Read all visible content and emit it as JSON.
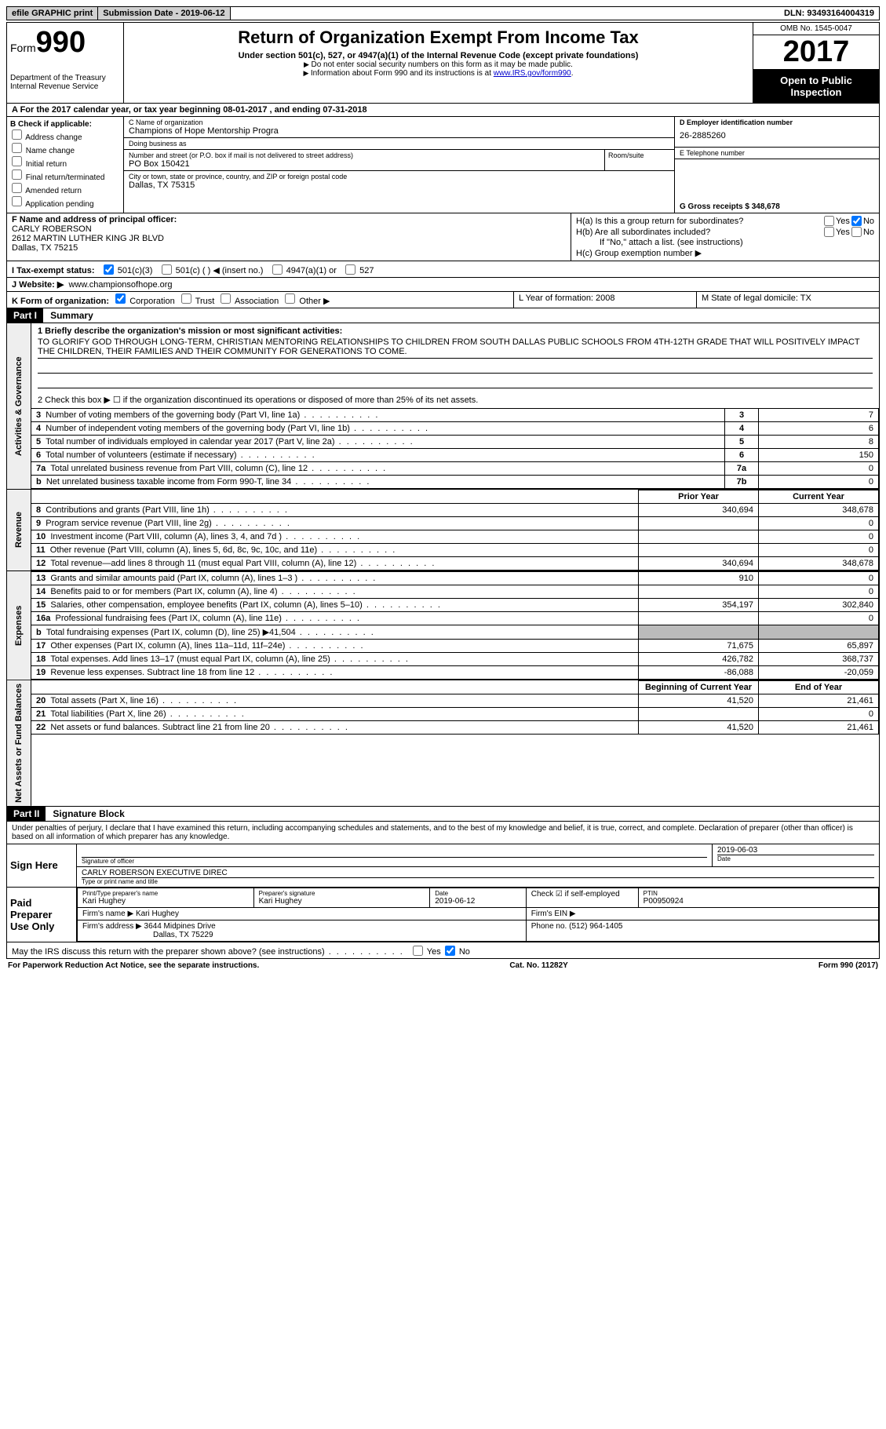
{
  "topbar": {
    "efile": "efile GRAPHIC print",
    "submission": "Submission Date - 2019-06-12",
    "dln": "DLN: 93493164004319"
  },
  "header": {
    "form_label": "Form",
    "form_no": "990",
    "dept": "Department of the Treasury",
    "irs": "Internal Revenue Service",
    "title": "Return of Organization Exempt From Income Tax",
    "subtitle": "Under section 501(c), 527, or 4947(a)(1) of the Internal Revenue Code (except private foundations)",
    "note1": "Do not enter social security numbers on this form as it may be made public.",
    "note2_pre": "Information about Form 990 and its instructions is at ",
    "note2_link": "www.IRS.gov/form990",
    "omb": "OMB No. 1545-0047",
    "year": "2017",
    "open": "Open to Public Inspection"
  },
  "row_a": "A  For the 2017 calendar year, or tax year beginning 08-01-2017   , and ending 07-31-2018",
  "col_b": {
    "title": "B Check if applicable:",
    "opts": [
      "Address change",
      "Name change",
      "Initial return",
      "Final return/terminated",
      "Amended return",
      "Application pending"
    ]
  },
  "org": {
    "c_label": "C Name of organization",
    "name": "Champions of Hope Mentorship Progra",
    "dba_label": "Doing business as",
    "dba": "",
    "addr_label": "Number and street (or P.O. box if mail is not delivered to street address)",
    "room_label": "Room/suite",
    "addr": "PO Box 150421",
    "city_label": "City or town, state or province, country, and ZIP or foreign postal code",
    "city": "Dallas, TX  75315"
  },
  "col_d": {
    "d_label": "D Employer identification number",
    "ein": "26-2885260",
    "e_label": "E Telephone number",
    "phone": "",
    "g_label": "G Gross receipts $ 348,678"
  },
  "f": {
    "label": "F  Name and address of principal officer:",
    "name": "CARLY ROBERSON",
    "addr1": "2612 MARTIN LUTHER KING JR BLVD",
    "addr2": "Dallas, TX  75215"
  },
  "h": {
    "a": "H(a)  Is this a group return for subordinates?",
    "b": "H(b)  Are all subordinates included?",
    "b_note": "If \"No,\" attach a list. (see instructions)",
    "c": "H(c)  Group exemption number ▶"
  },
  "i": {
    "label": "I  Tax-exempt status:",
    "o1": "501(c)(3)",
    "o2": "501(c) (   ) ◀ (insert no.)",
    "o3": "4947(a)(1) or",
    "o4": "527"
  },
  "j": {
    "label": "J  Website: ▶",
    "val": "www.championsofhope.org"
  },
  "k": {
    "label": "K Form of organization:",
    "corp": "Corporation",
    "trust": "Trust",
    "assoc": "Association",
    "other": "Other ▶",
    "l": "L Year of formation: 2008",
    "m": "M State of legal domicile: TX"
  },
  "part1": {
    "hdr": "Part I",
    "title": "Summary",
    "side1": "Activities & Governance",
    "side2": "Revenue",
    "side3": "Expenses",
    "side4": "Net Assets or Fund Balances",
    "l1": "1  Briefly describe the organization's mission or most significant activities:",
    "mission": "TO GLORIFY GOD THROUGH LONG-TERM, CHRISTIAN MENTORING RELATIONSHIPS TO CHILDREN FROM SOUTH DALLAS PUBLIC SCHOOLS FROM 4TH-12TH GRADE THAT WILL POSITIVELY IMPACT THE CHILDREN, THEIR FAMILIES AND THEIR COMMUNITY FOR GENERATIONS TO COME.",
    "l2": "2  Check this box ▶ ☐  if the organization discontinued its operations or disposed of more than 25% of its net assets.",
    "rows_gov": [
      {
        "n": "3",
        "d": "Number of voting members of the governing body (Part VI, line 1a)",
        "k": "3",
        "v": "7"
      },
      {
        "n": "4",
        "d": "Number of independent voting members of the governing body (Part VI, line 1b)",
        "k": "4",
        "v": "6"
      },
      {
        "n": "5",
        "d": "Total number of individuals employed in calendar year 2017 (Part V, line 2a)",
        "k": "5",
        "v": "8"
      },
      {
        "n": "6",
        "d": "Total number of volunteers (estimate if necessary)",
        "k": "6",
        "v": "150"
      },
      {
        "n": "7a",
        "d": "Total unrelated business revenue from Part VIII, column (C), line 12",
        "k": "7a",
        "v": "0"
      },
      {
        "n": "b",
        "d": "Net unrelated business taxable income from Form 990-T, line 34",
        "k": "7b",
        "v": "0"
      }
    ],
    "col_prior": "Prior Year",
    "col_current": "Current Year",
    "rows_rev": [
      {
        "n": "8",
        "d": "Contributions and grants (Part VIII, line 1h)",
        "p": "340,694",
        "c": "348,678"
      },
      {
        "n": "9",
        "d": "Program service revenue (Part VIII, line 2g)",
        "p": "",
        "c": "0"
      },
      {
        "n": "10",
        "d": "Investment income (Part VIII, column (A), lines 3, 4, and 7d )",
        "p": "",
        "c": "0"
      },
      {
        "n": "11",
        "d": "Other revenue (Part VIII, column (A), lines 5, 6d, 8c, 9c, 10c, and 11e)",
        "p": "",
        "c": "0"
      },
      {
        "n": "12",
        "d": "Total revenue—add lines 8 through 11 (must equal Part VIII, column (A), line 12)",
        "p": "340,694",
        "c": "348,678"
      }
    ],
    "rows_exp": [
      {
        "n": "13",
        "d": "Grants and similar amounts paid (Part IX, column (A), lines 1–3 )",
        "p": "910",
        "c": "0"
      },
      {
        "n": "14",
        "d": "Benefits paid to or for members (Part IX, column (A), line 4)",
        "p": "",
        "c": "0"
      },
      {
        "n": "15",
        "d": "Salaries, other compensation, employee benefits (Part IX, column (A), lines 5–10)",
        "p": "354,197",
        "c": "302,840"
      },
      {
        "n": "16a",
        "d": "Professional fundraising fees (Part IX, column (A), line 11e)",
        "p": "",
        "c": "0"
      },
      {
        "n": "b",
        "d": "Total fundraising expenses (Part IX, column (D), line 25) ▶41,504",
        "p": "SHADE",
        "c": "SHADE"
      },
      {
        "n": "17",
        "d": "Other expenses (Part IX, column (A), lines 11a–11d, 11f–24e)",
        "p": "71,675",
        "c": "65,897"
      },
      {
        "n": "18",
        "d": "Total expenses. Add lines 13–17 (must equal Part IX, column (A), line 25)",
        "p": "426,782",
        "c": "368,737"
      },
      {
        "n": "19",
        "d": "Revenue less expenses. Subtract line 18 from line 12",
        "p": "-86,088",
        "c": "-20,059"
      }
    ],
    "col_begin": "Beginning of Current Year",
    "col_end": "End of Year",
    "rows_net": [
      {
        "n": "20",
        "d": "Total assets (Part X, line 16)",
        "p": "41,520",
        "c": "21,461"
      },
      {
        "n": "21",
        "d": "Total liabilities (Part X, line 26)",
        "p": "",
        "c": "0"
      },
      {
        "n": "22",
        "d": "Net assets or fund balances. Subtract line 21 from line 20",
        "p": "41,520",
        "c": "21,461"
      }
    ]
  },
  "part2": {
    "hdr": "Part II",
    "title": "Signature Block",
    "intro": "Under penalties of perjury, I declare that I have examined this return, including accompanying schedules and statements, and to the best of my knowledge and belief, it is true, correct, and complete. Declaration of preparer (other than officer) is based on all information of which preparer has any knowledge.",
    "sign_here": "Sign Here",
    "sig_officer": "Signature of officer",
    "sig_date": "2019-06-03",
    "date_lbl": "Date",
    "officer_name": "CARLY ROBERSON  EXECUTIVE DIREC",
    "type_name": "Type or print name and title",
    "paid": "Paid Preparer Use Only",
    "prep_name_lbl": "Print/Type preparer's name",
    "prep_name": "Kari Hughey",
    "prep_sig_lbl": "Preparer's signature",
    "prep_sig": "Kari Hughey",
    "prep_date_lbl": "Date",
    "prep_date": "2019-06-12",
    "check_lbl": "Check ☑ if self-employed",
    "ptin_lbl": "PTIN",
    "ptin": "P00950924",
    "firm_name_lbl": "Firm's name    ▶",
    "firm_name": "Kari Hughey",
    "firm_ein_lbl": "Firm's EIN ▶",
    "firm_addr_lbl": "Firm's address ▶",
    "firm_addr1": "3644 Midpines Drive",
    "firm_addr2": "Dallas, TX  75229",
    "phone_lbl": "Phone no. (512) 964-1405",
    "discuss": "May the IRS discuss this return with the preparer shown above? (see instructions)"
  },
  "footer": {
    "l": "For Paperwork Reduction Act Notice, see the separate instructions.",
    "m": "Cat. No. 11282Y",
    "r": "Form 990 (2017)"
  }
}
